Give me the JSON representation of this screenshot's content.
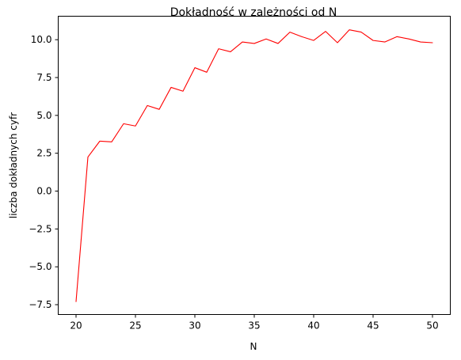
{
  "chart_data": {
    "type": "line",
    "title": "Dokładność w zależności od N",
    "xlabel": "N",
    "ylabel": "liczba dokładnych cyfr",
    "xlim": [
      18.5,
      51.5
    ],
    "ylim": [
      -8.15,
      11.55
    ],
    "xticks": [
      20,
      25,
      30,
      35,
      40,
      45,
      50
    ],
    "xtick_labels": [
      "20",
      "25",
      "30",
      "35",
      "40",
      "45",
      "50"
    ],
    "yticks": [
      -7.5,
      -5.0,
      -2.5,
      0.0,
      2.5,
      5.0,
      7.5,
      10.0
    ],
    "ytick_labels": [
      "−7.5",
      "−5.0",
      "−2.5",
      "0.0",
      "2.5",
      "5.0",
      "7.5",
      "10.0"
    ],
    "grid": false,
    "series": [
      {
        "color": "#ff0000",
        "x": [
          20,
          21,
          22,
          23,
          24,
          25,
          26,
          27,
          28,
          29,
          30,
          31,
          32,
          33,
          34,
          35,
          36,
          37,
          38,
          39,
          40,
          41,
          42,
          43,
          44,
          45,
          46,
          47,
          48,
          49,
          50
        ],
        "y": [
          -7.3,
          2.25,
          3.3,
          3.25,
          4.45,
          4.3,
          5.65,
          5.4,
          6.85,
          6.6,
          8.15,
          7.85,
          9.4,
          9.2,
          9.85,
          9.75,
          10.05,
          9.75,
          10.5,
          10.2,
          9.95,
          10.55,
          9.8,
          10.65,
          10.5,
          9.95,
          9.85,
          10.2,
          10.05,
          9.85,
          9.8
        ]
      }
    ]
  }
}
